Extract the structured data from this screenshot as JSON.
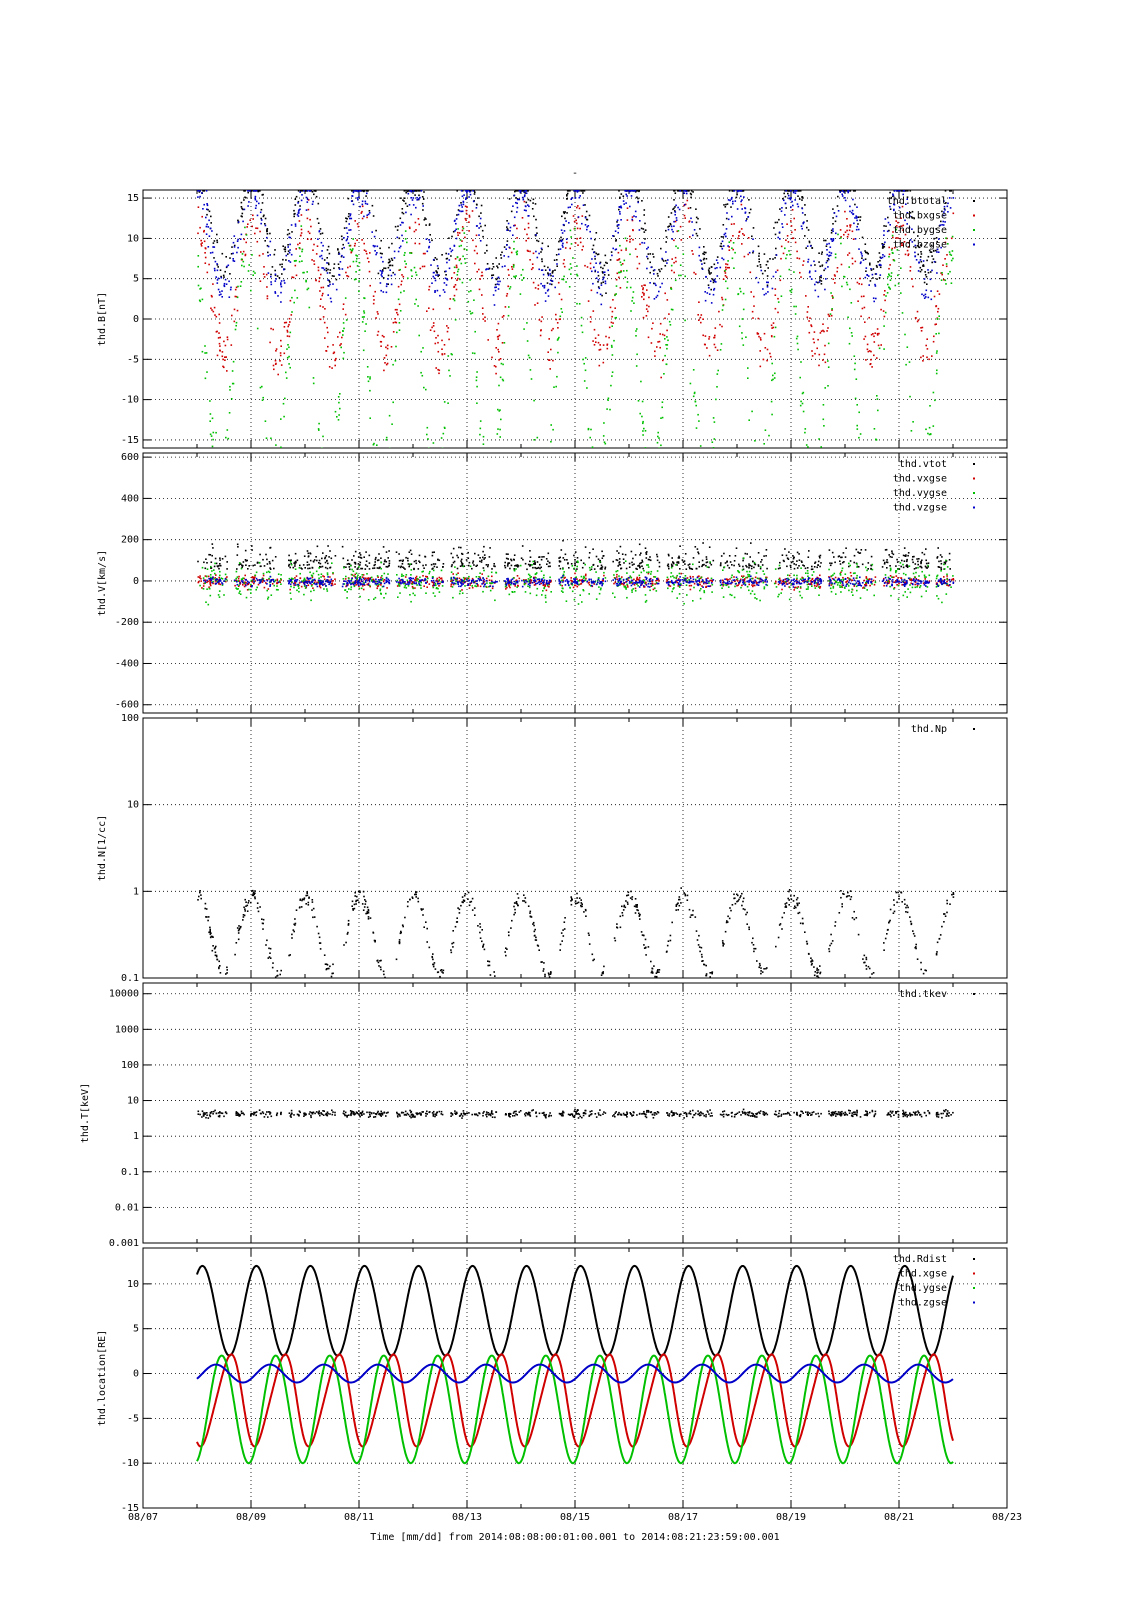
{
  "chart_data": {
    "type": "scatter",
    "title": "-",
    "xlabel": "Time [mm/dd]  from 2014:08:08:00:01:00.001  to  2014:08:21:23:59:00.001",
    "x_range_days": [
      0,
      16
    ],
    "x_tick_labels": [
      "08/07",
      "08/09",
      "08/11",
      "08/13",
      "08/15",
      "08/17",
      "08/19",
      "08/21",
      "08/23"
    ],
    "grid": true,
    "legend_position": "top-right",
    "panels": [
      {
        "ylabel": "thd.B[nT]",
        "scale": "linear",
        "ylim": [
          -16,
          16
        ],
        "yticks": [
          -15,
          -10,
          -5,
          0,
          5,
          10,
          15
        ],
        "series": [
          {
            "name": "thd.btotal",
            "color": "#000000"
          },
          {
            "name": "thd.bxgse",
            "color": "#d00000"
          },
          {
            "name": "thd.bygse",
            "color": "#00c000"
          },
          {
            "name": "thd.bzgse",
            "color": "#0000c8"
          }
        ]
      },
      {
        "ylabel": "thd.V[km/s]",
        "scale": "linear",
        "ylim": [
          -640,
          620
        ],
        "yticks": [
          -600,
          -400,
          -200,
          0,
          200,
          400,
          600
        ],
        "series": [
          {
            "name": "thd.vtot",
            "color": "#000000"
          },
          {
            "name": "thd.vxgse",
            "color": "#d00000"
          },
          {
            "name": "thd.vygse",
            "color": "#00c000"
          },
          {
            "name": "thd.vzgse",
            "color": "#0000c8"
          }
        ]
      },
      {
        "ylabel": "thd.N[1/cc]",
        "scale": "log",
        "ylim": [
          0.1,
          100
        ],
        "yticks": [
          0.1,
          1,
          10,
          100
        ],
        "series": [
          {
            "name": "thd.Np",
            "color": "#000000"
          }
        ]
      },
      {
        "ylabel": "thd.T[keV]",
        "scale": "log",
        "ylim": [
          0.001,
          20000
        ],
        "yticks": [
          0.001,
          0.01,
          0.1,
          1,
          10,
          100,
          1000,
          10000
        ],
        "series": [
          {
            "name": "thd.tkev",
            "color": "#000000"
          }
        ]
      },
      {
        "ylabel": "thd.location[RE]",
        "scale": "linear",
        "ylim": [
          -15,
          14
        ],
        "yticks": [
          -15,
          -10,
          -5,
          0,
          5,
          10
        ],
        "series": [
          {
            "name": "thd.Rdist",
            "color": "#000000"
          },
          {
            "name": "thd.xgse",
            "color": "#d00000"
          },
          {
            "name": "thd.ygse",
            "color": "#00c000"
          },
          {
            "name": "thd.zgse",
            "color": "#0000c8"
          }
        ]
      }
    ]
  }
}
